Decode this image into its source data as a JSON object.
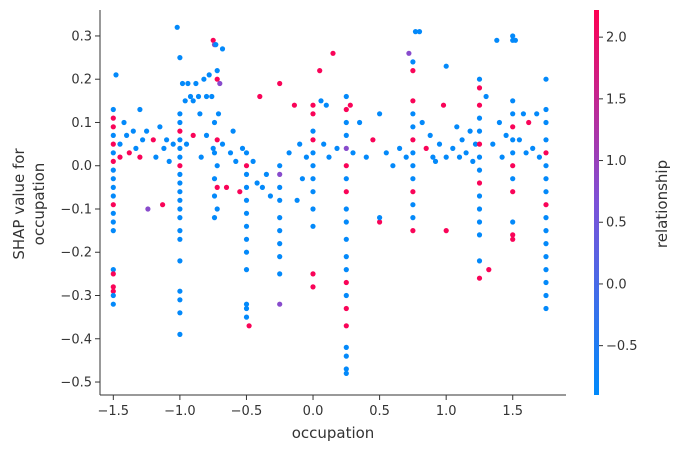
{
  "chart_data": {
    "type": "scatter",
    "subtype": "shap_dependence",
    "xlabel": "occupation",
    "ylabel_lines": [
      "SHAP value for",
      "occupation"
    ],
    "xlim": [
      -1.6,
      1.9
    ],
    "ylim": [
      -0.53,
      0.36
    ],
    "xticks": [
      -1.5,
      -1.0,
      -0.5,
      0.0,
      0.5,
      1.0,
      1.5
    ],
    "xtick_labels": [
      "−1.5",
      "−1.0",
      "−0.5",
      "0.0",
      "0.5",
      "1.0",
      "1.5"
    ],
    "yticks": [
      -0.5,
      -0.4,
      -0.3,
      -0.2,
      -0.1,
      0.0,
      0.1,
      0.2,
      0.3
    ],
    "ytick_labels": [
      "−0.5",
      "−0.4",
      "−0.3",
      "−0.2",
      "−0.1",
      "0.0",
      "0.1",
      "0.2",
      "0.3"
    ],
    "colorbar": {
      "label": "relationship",
      "range": [
        -0.9,
        2.22
      ],
      "ticks": [
        -0.5,
        0.0,
        0.5,
        1.0,
        1.5,
        2.0
      ],
      "tick_labels": [
        "−0.5",
        "0.0",
        "0.5",
        "1.0",
        "1.5",
        "2.0"
      ],
      "colormap": [
        "#008afb",
        "#7c52d8",
        "#ff0052"
      ]
    },
    "points": [
      [
        -1.5,
        0.13,
        -0.86
      ],
      [
        -1.5,
        0.11,
        2.15
      ],
      [
        -1.5,
        0.09,
        2.15
      ],
      [
        -1.5,
        0.07,
        -0.86
      ],
      [
        -1.5,
        0.05,
        2.15
      ],
      [
        -1.5,
        0.03,
        -0.86
      ],
      [
        -1.5,
        0.01,
        2.15
      ],
      [
        -1.5,
        -0.01,
        -0.86
      ],
      [
        -1.5,
        -0.03,
        -0.86
      ],
      [
        -1.5,
        -0.05,
        -0.86
      ],
      [
        -1.5,
        -0.07,
        -0.86
      ],
      [
        -1.5,
        -0.09,
        2.15
      ],
      [
        -1.5,
        -0.11,
        -0.86
      ],
      [
        -1.5,
        -0.13,
        -0.86
      ],
      [
        -1.5,
        -0.15,
        -0.86
      ],
      [
        -1.5,
        -0.24,
        -0.86
      ],
      [
        -1.5,
        -0.25,
        2.15
      ],
      [
        -1.5,
        -0.28,
        2.15
      ],
      [
        -1.5,
        -0.29,
        2.15
      ],
      [
        -1.5,
        -0.3,
        -0.86
      ],
      [
        -1.5,
        -0.32,
        -0.86
      ],
      [
        -1.48,
        0.21,
        -0.86
      ],
      [
        -1.45,
        0.05,
        -0.86
      ],
      [
        -1.45,
        0.02,
        2.15
      ],
      [
        -1.42,
        0.1,
        -0.86
      ],
      [
        -1.4,
        0.07,
        -0.86
      ],
      [
        -1.38,
        0.03,
        2.15
      ],
      [
        -1.35,
        0.08,
        -0.86
      ],
      [
        -1.33,
        0.04,
        -0.86
      ],
      [
        -1.3,
        0.13,
        -0.86
      ],
      [
        -1.3,
        0.02,
        2.15
      ],
      [
        -1.28,
        0.06,
        -0.86
      ],
      [
        -1.25,
        0.08,
        -0.86
      ],
      [
        -1.24,
        -0.1,
        0.8
      ],
      [
        -1.2,
        0.06,
        2.15
      ],
      [
        -1.18,
        0.02,
        -0.86
      ],
      [
        -1.15,
        0.09,
        -0.86
      ],
      [
        -1.13,
        -0.09,
        2.15
      ],
      [
        -1.12,
        0.04,
        -0.86
      ],
      [
        -1.1,
        0.06,
        -0.86
      ],
      [
        -1.08,
        0.01,
        -0.86
      ],
      [
        -1.05,
        0.05,
        -0.86
      ],
      [
        -1.02,
        0.32,
        -0.86
      ],
      [
        -1.0,
        0.25,
        -0.86
      ],
      [
        -1.0,
        0.12,
        -0.86
      ],
      [
        -1.0,
        0.1,
        -0.86
      ],
      [
        -1.0,
        0.08,
        2.15
      ],
      [
        -1.0,
        0.06,
        -0.86
      ],
      [
        -1.0,
        0.04,
        -0.86
      ],
      [
        -1.0,
        0.02,
        -0.86
      ],
      [
        -1.0,
        0.0,
        2.15
      ],
      [
        -1.0,
        -0.02,
        -0.86
      ],
      [
        -1.0,
        -0.04,
        -0.86
      ],
      [
        -1.0,
        -0.06,
        -0.86
      ],
      [
        -1.0,
        -0.08,
        -0.86
      ],
      [
        -1.0,
        -0.1,
        -0.86
      ],
      [
        -1.0,
        -0.12,
        -0.86
      ],
      [
        -1.0,
        -0.15,
        -0.86
      ],
      [
        -1.0,
        -0.17,
        -0.86
      ],
      [
        -1.0,
        -0.22,
        -0.86
      ],
      [
        -1.0,
        -0.29,
        -0.86
      ],
      [
        -1.0,
        -0.31,
        -0.86
      ],
      [
        -1.0,
        -0.34,
        -0.86
      ],
      [
        -1.0,
        -0.39,
        -0.86
      ],
      [
        -0.98,
        0.19,
        -0.86
      ],
      [
        -0.96,
        0.15,
        -0.86
      ],
      [
        -0.95,
        0.05,
        -0.86
      ],
      [
        -0.94,
        0.19,
        -0.86
      ],
      [
        -0.92,
        0.16,
        -0.86
      ],
      [
        -0.9,
        0.15,
        -0.86
      ],
      [
        -0.9,
        0.07,
        2.15
      ],
      [
        -0.88,
        0.19,
        -0.86
      ],
      [
        -0.86,
        0.16,
        -0.86
      ],
      [
        -0.85,
        0.12,
        -0.86
      ],
      [
        -0.84,
        0.02,
        -0.86
      ],
      [
        -0.82,
        0.2,
        -0.86
      ],
      [
        -0.8,
        0.16,
        -0.86
      ],
      [
        -0.8,
        0.07,
        -0.86
      ],
      [
        -0.78,
        0.21,
        -0.86
      ],
      [
        -0.76,
        0.16,
        -0.86
      ],
      [
        -0.75,
        0.04,
        -0.86
      ],
      [
        -0.75,
        0.29,
        2.15
      ],
      [
        -0.74,
        0.28,
        0.8
      ],
      [
        -0.73,
        0.28,
        -0.86
      ],
      [
        -0.72,
        0.22,
        -0.86
      ],
      [
        -0.72,
        0.2,
        2.15
      ],
      [
        -0.7,
        0.19,
        0.8
      ],
      [
        -0.71,
        0.12,
        -0.86
      ],
      [
        -0.74,
        0.1,
        -0.86
      ],
      [
        -0.72,
        0.06,
        2.15
      ],
      [
        -0.74,
        0.03,
        -0.86
      ],
      [
        -0.72,
        0.0,
        -0.86
      ],
      [
        -0.74,
        -0.03,
        -0.86
      ],
      [
        -0.72,
        -0.05,
        2.15
      ],
      [
        -0.74,
        -0.07,
        -0.86
      ],
      [
        -0.72,
        -0.1,
        -0.86
      ],
      [
        -0.74,
        -0.12,
        -0.86
      ],
      [
        -0.68,
        0.27,
        -0.86
      ],
      [
        -0.68,
        0.05,
        -0.86
      ],
      [
        -0.65,
        -0.05,
        2.15
      ],
      [
        -0.62,
        0.03,
        -0.86
      ],
      [
        -0.6,
        0.08,
        -0.86
      ],
      [
        -0.58,
        0.01,
        -0.86
      ],
      [
        -0.55,
        -0.06,
        2.15
      ],
      [
        -0.53,
        0.04,
        -0.86
      ],
      [
        -0.5,
        0.03,
        -0.86
      ],
      [
        -0.5,
        0.0,
        2.15
      ],
      [
        -0.5,
        -0.02,
        -0.86
      ],
      [
        -0.5,
        -0.05,
        -0.86
      ],
      [
        -0.5,
        -0.08,
        -0.86
      ],
      [
        -0.5,
        -0.11,
        -0.86
      ],
      [
        -0.5,
        -0.14,
        -0.86
      ],
      [
        -0.5,
        -0.17,
        -0.86
      ],
      [
        -0.5,
        -0.2,
        -0.86
      ],
      [
        -0.5,
        -0.24,
        -0.86
      ],
      [
        -0.5,
        -0.32,
        -0.86
      ],
      [
        -0.5,
        -0.33,
        -0.86
      ],
      [
        -0.5,
        -0.35,
        -0.86
      ],
      [
        -0.48,
        -0.37,
        2.15
      ],
      [
        -0.45,
        0.01,
        -0.86
      ],
      [
        -0.42,
        -0.04,
        -0.86
      ],
      [
        -0.4,
        0.16,
        2.15
      ],
      [
        -0.38,
        -0.05,
        -0.86
      ],
      [
        -0.35,
        -0.02,
        -0.86
      ],
      [
        -0.32,
        -0.07,
        -0.86
      ],
      [
        -0.25,
        0.19,
        2.15
      ],
      [
        -0.25,
        0.0,
        -0.86
      ],
      [
        -0.25,
        -0.02,
        0.8
      ],
      [
        -0.25,
        -0.05,
        -0.86
      ],
      [
        -0.25,
        -0.08,
        -0.86
      ],
      [
        -0.25,
        -0.12,
        -0.86
      ],
      [
        -0.25,
        -0.15,
        -0.86
      ],
      [
        -0.25,
        -0.18,
        -0.86
      ],
      [
        -0.25,
        -0.21,
        -0.86
      ],
      [
        -0.25,
        -0.25,
        -0.86
      ],
      [
        -0.25,
        -0.32,
        0.8
      ],
      [
        -0.18,
        0.03,
        -0.86
      ],
      [
        -0.14,
        0.14,
        2.15
      ],
      [
        -0.12,
        -0.08,
        -0.86
      ],
      [
        -0.1,
        0.05,
        -0.86
      ],
      [
        -0.08,
        -0.03,
        -0.86
      ],
      [
        -0.05,
        0.02,
        -0.86
      ],
      [
        0.0,
        0.14,
        2.15
      ],
      [
        0.0,
        0.12,
        2.15
      ],
      [
        0.0,
        0.08,
        -0.86
      ],
      [
        0.0,
        0.06,
        2.15
      ],
      [
        0.0,
        0.03,
        -0.86
      ],
      [
        0.0,
        0.0,
        -0.86
      ],
      [
        0.0,
        -0.03,
        -0.86
      ],
      [
        0.0,
        -0.06,
        -0.86
      ],
      [
        0.0,
        -0.1,
        -0.86
      ],
      [
        0.0,
        -0.14,
        -0.86
      ],
      [
        0.0,
        -0.25,
        2.15
      ],
      [
        0.0,
        -0.28,
        2.15
      ],
      [
        0.05,
        0.22,
        2.15
      ],
      [
        0.06,
        0.15,
        -0.86
      ],
      [
        0.08,
        0.05,
        -0.86
      ],
      [
        0.1,
        0.14,
        -0.86
      ],
      [
        0.12,
        0.02,
        -0.86
      ],
      [
        0.15,
        0.26,
        2.15
      ],
      [
        0.18,
        0.04,
        -0.86
      ],
      [
        0.25,
        0.16,
        -0.86
      ],
      [
        0.25,
        0.13,
        2.15
      ],
      [
        0.25,
        0.1,
        -0.86
      ],
      [
        0.25,
        0.07,
        -0.86
      ],
      [
        0.25,
        0.04,
        0.8
      ],
      [
        0.25,
        0.0,
        2.15
      ],
      [
        0.25,
        -0.03,
        -0.86
      ],
      [
        0.25,
        -0.06,
        2.15
      ],
      [
        0.25,
        -0.1,
        -0.86
      ],
      [
        0.25,
        -0.13,
        -0.86
      ],
      [
        0.25,
        -0.17,
        -0.86
      ],
      [
        0.25,
        -0.21,
        -0.86
      ],
      [
        0.25,
        -0.24,
        -0.86
      ],
      [
        0.25,
        -0.27,
        2.15
      ],
      [
        0.25,
        -0.3,
        -0.86
      ],
      [
        0.25,
        -0.33,
        2.15
      ],
      [
        0.25,
        -0.37,
        2.15
      ],
      [
        0.25,
        -0.42,
        -0.86
      ],
      [
        0.25,
        -0.44,
        -0.86
      ],
      [
        0.25,
        -0.47,
        -0.86
      ],
      [
        0.25,
        -0.48,
        -0.86
      ],
      [
        0.28,
        0.14,
        2.15
      ],
      [
        0.3,
        0.03,
        -0.86
      ],
      [
        0.35,
        0.1,
        -0.86
      ],
      [
        0.4,
        0.02,
        -0.86
      ],
      [
        0.45,
        0.06,
        2.15
      ],
      [
        0.5,
        0.12,
        -0.86
      ],
      [
        0.5,
        -0.13,
        2.15
      ],
      [
        0.5,
        -0.12,
        -0.86
      ],
      [
        0.55,
        0.03,
        -0.86
      ],
      [
        0.6,
        0.0,
        -0.86
      ],
      [
        0.65,
        0.04,
        -0.86
      ],
      [
        0.7,
        0.02,
        -0.86
      ],
      [
        0.72,
        0.26,
        0.8
      ],
      [
        0.75,
        0.24,
        -0.86
      ],
      [
        0.75,
        0.22,
        2.15
      ],
      [
        0.75,
        0.15,
        2.15
      ],
      [
        0.75,
        0.12,
        -0.86
      ],
      [
        0.75,
        0.09,
        -0.86
      ],
      [
        0.75,
        0.06,
        2.15
      ],
      [
        0.75,
        0.03,
        -0.86
      ],
      [
        0.75,
        0.0,
        -0.86
      ],
      [
        0.75,
        -0.03,
        -0.86
      ],
      [
        0.75,
        -0.06,
        2.15
      ],
      [
        0.75,
        -0.09,
        -0.86
      ],
      [
        0.75,
        -0.12,
        -0.86
      ],
      [
        0.75,
        -0.15,
        2.15
      ],
      [
        0.77,
        0.31,
        -0.86
      ],
      [
        0.8,
        0.31,
        -0.86
      ],
      [
        0.82,
        0.1,
        -0.86
      ],
      [
        0.85,
        0.04,
        2.15
      ],
      [
        0.88,
        0.07,
        -0.86
      ],
      [
        0.9,
        0.02,
        -0.86
      ],
      [
        0.92,
        0.01,
        -0.86
      ],
      [
        0.95,
        0.05,
        -0.86
      ],
      [
        0.98,
        0.14,
        2.15
      ],
      [
        1.0,
        0.23,
        -0.86
      ],
      [
        1.0,
        0.02,
        -0.86
      ],
      [
        1.0,
        -0.15,
        2.15
      ],
      [
        1.05,
        0.04,
        -0.86
      ],
      [
        1.08,
        0.09,
        -0.86
      ],
      [
        1.1,
        0.02,
        -0.86
      ],
      [
        1.12,
        0.06,
        -0.86
      ],
      [
        1.15,
        0.03,
        -0.86
      ],
      [
        1.18,
        0.08,
        -0.86
      ],
      [
        1.2,
        0.01,
        -0.86
      ],
      [
        1.22,
        0.05,
        -0.86
      ],
      [
        1.25,
        0.2,
        -0.86
      ],
      [
        1.25,
        0.18,
        2.15
      ],
      [
        1.25,
        0.14,
        2.15
      ],
      [
        1.25,
        0.11,
        -0.86
      ],
      [
        1.25,
        0.08,
        -0.86
      ],
      [
        1.25,
        0.05,
        2.15
      ],
      [
        1.25,
        0.02,
        -0.86
      ],
      [
        1.25,
        -0.01,
        -0.86
      ],
      [
        1.25,
        -0.04,
        2.15
      ],
      [
        1.25,
        -0.07,
        -0.86
      ],
      [
        1.25,
        -0.1,
        -0.86
      ],
      [
        1.25,
        -0.13,
        -0.86
      ],
      [
        1.25,
        -0.16,
        -0.86
      ],
      [
        1.25,
        -0.22,
        -0.86
      ],
      [
        1.25,
        -0.26,
        2.15
      ],
      [
        1.3,
        0.16,
        -0.86
      ],
      [
        1.32,
        -0.24,
        2.15
      ],
      [
        1.35,
        0.05,
        -0.86
      ],
      [
        1.38,
        0.29,
        -0.86
      ],
      [
        1.4,
        0.1,
        -0.86
      ],
      [
        1.42,
        0.02,
        -0.86
      ],
      [
        1.45,
        0.07,
        -0.86
      ],
      [
        1.5,
        0.3,
        -0.86
      ],
      [
        1.5,
        0.29,
        -0.86
      ],
      [
        1.52,
        0.29,
        -0.86
      ],
      [
        1.5,
        0.15,
        -0.86
      ],
      [
        1.5,
        0.12,
        -0.86
      ],
      [
        1.5,
        0.09,
        2.15
      ],
      [
        1.5,
        0.06,
        -0.86
      ],
      [
        1.5,
        0.03,
        -0.86
      ],
      [
        1.5,
        0.0,
        2.15
      ],
      [
        1.5,
        -0.03,
        -0.86
      ],
      [
        1.5,
        -0.06,
        2.15
      ],
      [
        1.5,
        -0.13,
        -0.86
      ],
      [
        1.5,
        -0.16,
        2.15
      ],
      [
        1.5,
        -0.17,
        2.15
      ],
      [
        1.55,
        0.06,
        -0.86
      ],
      [
        1.58,
        0.12,
        -0.86
      ],
      [
        1.6,
        0.03,
        -0.86
      ],
      [
        1.62,
        0.1,
        2.15
      ],
      [
        1.65,
        0.04,
        -0.86
      ],
      [
        1.68,
        0.12,
        -0.86
      ],
      [
        1.7,
        0.02,
        -0.86
      ],
      [
        1.75,
        0.2,
        -0.86
      ],
      [
        1.75,
        0.13,
        -0.86
      ],
      [
        1.75,
        0.1,
        -0.86
      ],
      [
        1.75,
        0.06,
        -0.86
      ],
      [
        1.75,
        0.03,
        2.15
      ],
      [
        1.75,
        0.0,
        -0.86
      ],
      [
        1.75,
        -0.03,
        -0.86
      ],
      [
        1.75,
        -0.06,
        -0.86
      ],
      [
        1.75,
        -0.09,
        2.15
      ],
      [
        1.75,
        -0.12,
        -0.86
      ],
      [
        1.75,
        -0.15,
        -0.86
      ],
      [
        1.75,
        -0.18,
        -0.86
      ],
      [
        1.75,
        -0.21,
        -0.86
      ],
      [
        1.75,
        -0.24,
        -0.86
      ],
      [
        1.75,
        -0.27,
        -0.86
      ],
      [
        1.75,
        -0.3,
        -0.86
      ],
      [
        1.75,
        -0.33,
        -0.86
      ]
    ]
  }
}
